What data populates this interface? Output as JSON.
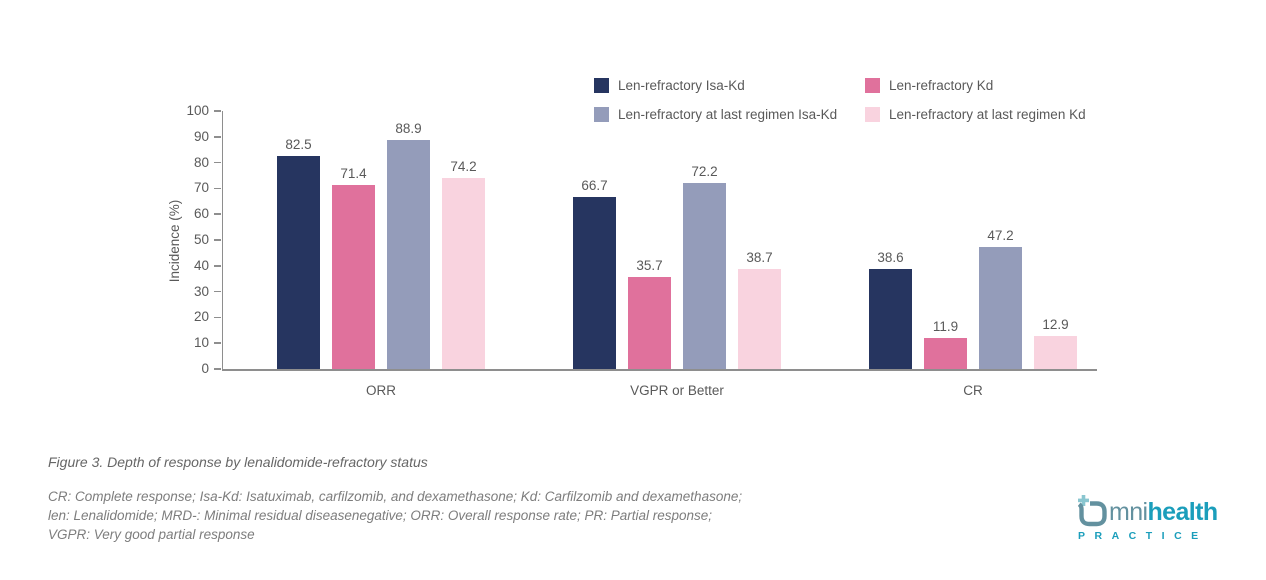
{
  "figure": {
    "caption": "Figure 3. Depth of response by lenalidomide-refractory status",
    "footnote_lines": [
      "CR: Complete response; Isa-Kd: Isatuximab, carfilzomib, and dexamethasone; Kd: Carfilzomib and dexamethasone;",
      "len: Lenalidomide; MRD-: Minimal residual diseasenegative; ORR: Overall response rate; PR: Partial response;",
      "VGPR: Very good partial response"
    ]
  },
  "chart_data": {
    "type": "bar",
    "title": "",
    "xlabel": "",
    "ylabel": "Incidence (%)",
    "ylim": [
      0,
      100
    ],
    "ytick_step": 10,
    "grid": false,
    "legend_position": "top",
    "value_labels": true,
    "categories": [
      "ORR",
      "VGPR or Better",
      "CR"
    ],
    "series": [
      {
        "name": "Len-refractory Isa-Kd",
        "color": "#263560",
        "values": [
          82.5,
          66.7,
          38.6
        ]
      },
      {
        "name": "Len-refractory Kd",
        "color": "#E0719C",
        "values": [
          71.4,
          35.7,
          11.9
        ]
      },
      {
        "name": "Len-refractory at last regimen Isa-Kd",
        "color": "#949CBA",
        "values": [
          88.9,
          72.2,
          47.2
        ]
      },
      {
        "name": "Len-refractory at last regimen Kd",
        "color": "#F9D3DF",
        "values": [
          74.2,
          38.7,
          12.9
        ]
      }
    ]
  },
  "logo": {
    "name": "omnihealth",
    "word_light": "mni",
    "word_bold": "health",
    "subtext": "PRACTICE",
    "color_teal": "#1B9EBB",
    "color_muted": "#63919F",
    "color_light": "#8AC6D0"
  },
  "colors": {
    "text": "#595959",
    "axis_line": "#8E8E8E",
    "background": "#FFFFFF"
  }
}
